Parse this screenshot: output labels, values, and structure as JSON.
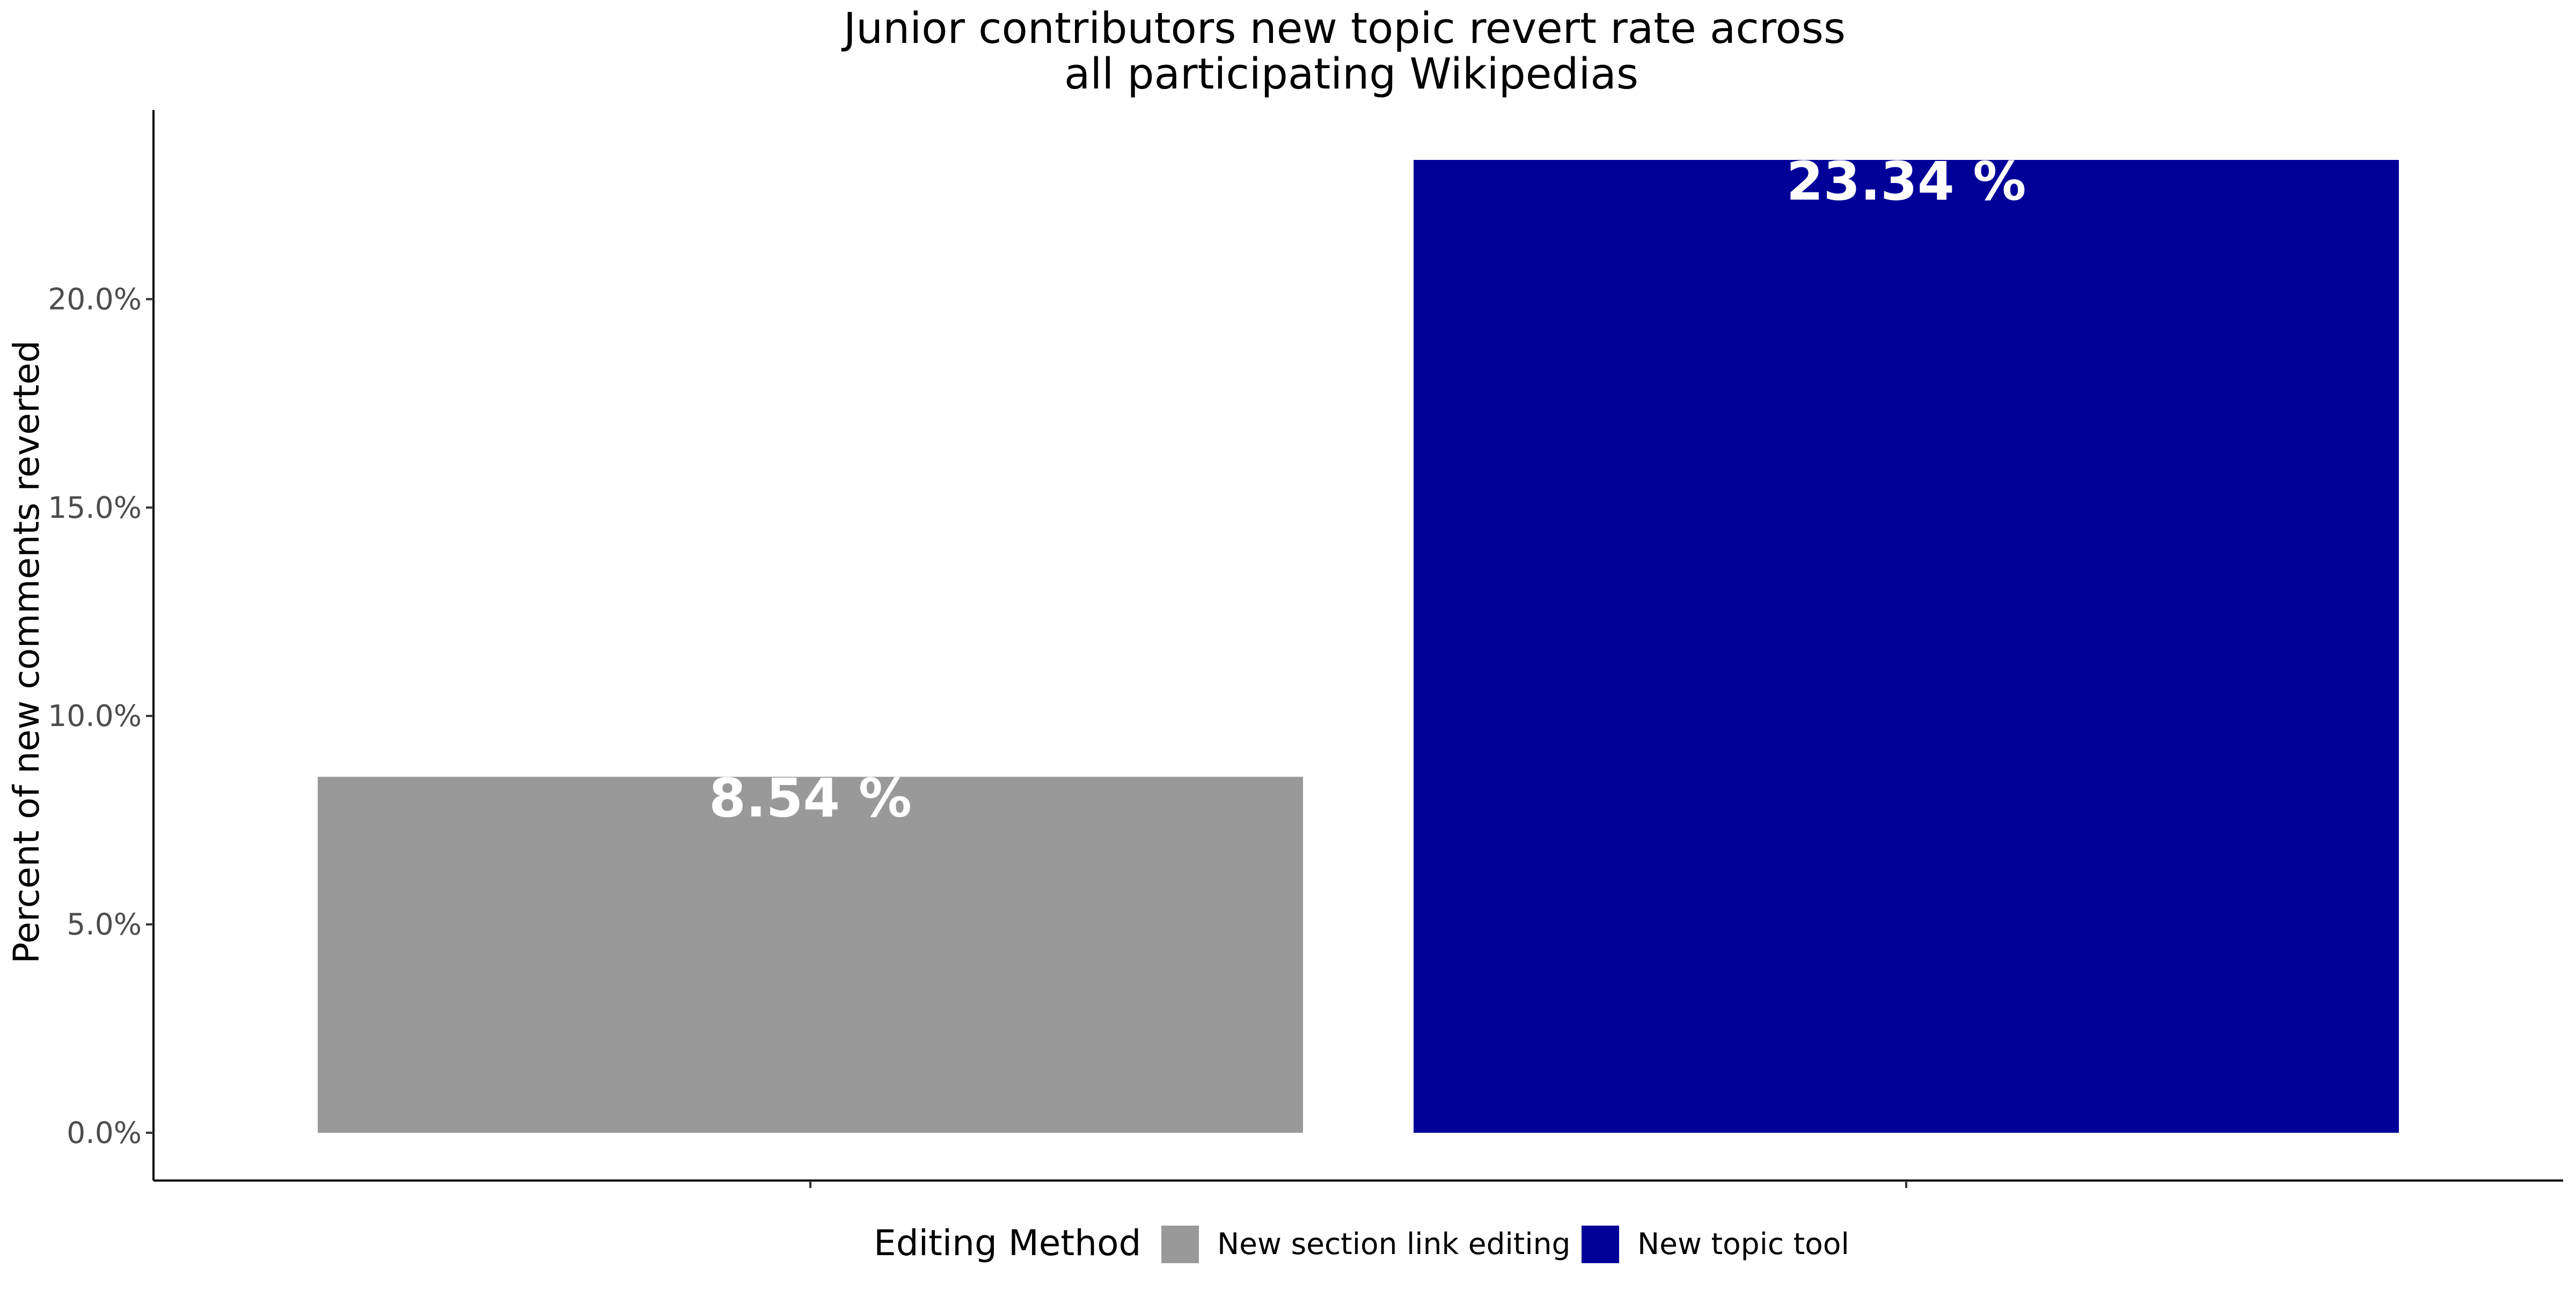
{
  "chart_data": {
    "type": "bar",
    "title": "Junior contributors new topic revert rate across\nall participating Wikipedias",
    "title_lines": [
      "Junior contributors new topic revert rate across",
      "all participating Wikipedias"
    ],
    "xlabel": "",
    "ylabel": "Percent of new comments reverted",
    "ylim": [
      0,
      23.34
    ],
    "yticks": [
      0,
      5,
      10,
      15,
      20
    ],
    "ytick_labels": [
      "0.0%",
      "5.0%",
      "10.0%",
      "15.0%",
      "20.0%"
    ],
    "categories": [
      "New section link editing",
      "New topic tool"
    ],
    "values": [
      8.54,
      23.34
    ],
    "data_labels": [
      "8.54 %",
      "23.34 %"
    ],
    "colors": [
      "#999999",
      "#000099"
    ],
    "grid": false,
    "legend": {
      "title": "Editing Method",
      "placement": "bottom",
      "entries": [
        {
          "label": "New section link editing",
          "color": "#999999"
        },
        {
          "label": "New topic tool",
          "color": "#000099"
        }
      ]
    }
  }
}
